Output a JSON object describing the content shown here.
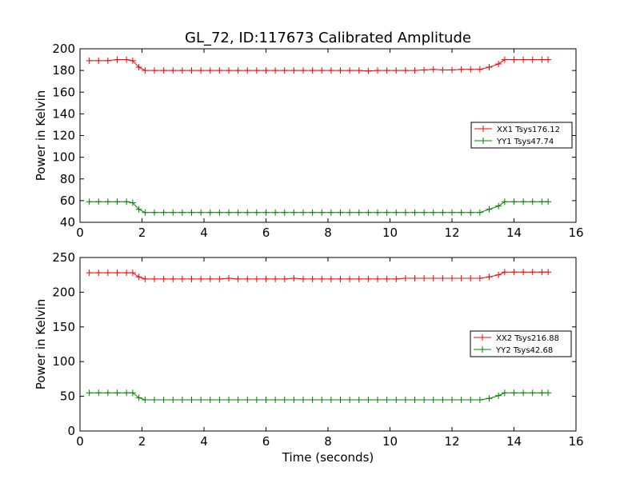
{
  "chart_data": [
    {
      "type": "line",
      "title": "GL_72, ID:117673 Calibrated Amplitude",
      "xlabel": "",
      "ylabel": "Power in Kelvin",
      "xlim": [
        0,
        16
      ],
      "ylim": [
        40,
        200
      ],
      "xticks": [
        0,
        2,
        4,
        6,
        8,
        10,
        12,
        14,
        16
      ],
      "yticks": [
        40,
        60,
        80,
        100,
        120,
        140,
        160,
        180,
        200
      ],
      "grid": false,
      "legend_position": "right",
      "marker": "+",
      "x": [
        0.3,
        0.6,
        0.9,
        1.2,
        1.5,
        1.7,
        1.9,
        2.1,
        2.4,
        2.7,
        3.0,
        3.3,
        3.6,
        3.9,
        4.2,
        4.5,
        4.8,
        5.1,
        5.4,
        5.7,
        6.0,
        6.3,
        6.6,
        6.9,
        7.2,
        7.5,
        7.8,
        8.1,
        8.4,
        8.7,
        9.0,
        9.3,
        9.6,
        9.9,
        10.2,
        10.5,
        10.8,
        11.1,
        11.4,
        11.7,
        12.0,
        12.3,
        12.6,
        12.9,
        13.2,
        13.5,
        13.7,
        14.0,
        14.3,
        14.6,
        14.9,
        15.1
      ],
      "series": [
        {
          "name": "XX1 Tsys176.12",
          "color": "#ff0000",
          "values": [
            189,
            189,
            189,
            190,
            190,
            189,
            183,
            180,
            180,
            180,
            180,
            180,
            180,
            180,
            180,
            180,
            180,
            180,
            180,
            180,
            180,
            180,
            180,
            180,
            180,
            180,
            180,
            180,
            180,
            180,
            180,
            179.5,
            180,
            180,
            180,
            180,
            180,
            180.5,
            181,
            180.5,
            180.5,
            181,
            181,
            181,
            183,
            186,
            190,
            190,
            190,
            190,
            190,
            190
          ]
        },
        {
          "name": "YY1 Tsys47.74",
          "color": "#008000",
          "values": [
            59,
            59,
            59,
            59,
            59,
            58,
            52,
            49,
            49,
            49,
            49,
            49,
            49,
            49,
            49,
            49,
            49,
            49,
            49,
            49,
            49,
            49,
            49,
            49,
            49,
            49,
            49,
            49,
            49,
            49,
            49,
            49,
            49,
            49,
            49,
            49,
            49,
            49,
            49,
            49,
            49,
            49,
            49,
            49,
            52,
            55,
            59,
            59,
            59,
            59,
            59,
            59
          ]
        }
      ]
    },
    {
      "type": "line",
      "title": "",
      "xlabel": "Time (seconds)",
      "ylabel": "Power in Kelvin",
      "xlim": [
        0,
        16
      ],
      "ylim": [
        0,
        250
      ],
      "xticks": [
        0,
        2,
        4,
        6,
        8,
        10,
        12,
        14,
        16
      ],
      "yticks": [
        0,
        50,
        100,
        150,
        200,
        250
      ],
      "grid": false,
      "legend_position": "right",
      "marker": "+",
      "x": [
        0.3,
        0.6,
        0.9,
        1.2,
        1.5,
        1.7,
        1.9,
        2.1,
        2.4,
        2.7,
        3.0,
        3.3,
        3.6,
        3.9,
        4.2,
        4.5,
        4.8,
        5.1,
        5.4,
        5.7,
        6.0,
        6.3,
        6.6,
        6.9,
        7.2,
        7.5,
        7.8,
        8.1,
        8.4,
        8.7,
        9.0,
        9.3,
        9.6,
        9.9,
        10.2,
        10.5,
        10.8,
        11.1,
        11.4,
        11.7,
        12.0,
        12.3,
        12.6,
        12.9,
        13.2,
        13.5,
        13.7,
        14.0,
        14.3,
        14.6,
        14.9,
        15.1
      ],
      "series": [
        {
          "name": "XX2 Tsys216.88",
          "color": "#ff0000",
          "values": [
            228,
            228,
            228,
            228,
            228,
            228,
            222,
            219,
            219,
            219,
            219,
            219,
            219,
            219,
            219,
            219,
            220,
            219,
            219,
            219,
            219,
            219,
            219,
            220,
            219,
            219,
            219,
            219,
            219,
            219,
            219,
            219,
            219,
            219,
            219,
            220,
            220,
            220,
            220,
            220,
            220,
            220,
            220,
            220,
            222,
            225,
            229,
            229,
            229,
            229,
            229,
            229
          ]
        },
        {
          "name": "YY2 Tsys42.68",
          "color": "#008000",
          "values": [
            55,
            55,
            55,
            55,
            55,
            55,
            48,
            45,
            45,
            45,
            45,
            45,
            45,
            45,
            45,
            45,
            45,
            45,
            45,
            45,
            45,
            45,
            45,
            45,
            45,
            45,
            45,
            45,
            45,
            45,
            45,
            45,
            45,
            45,
            45,
            45,
            45,
            45,
            45,
            45,
            45,
            45,
            45,
            45,
            47,
            51,
            55,
            55,
            55,
            55,
            55,
            55
          ]
        }
      ]
    }
  ]
}
